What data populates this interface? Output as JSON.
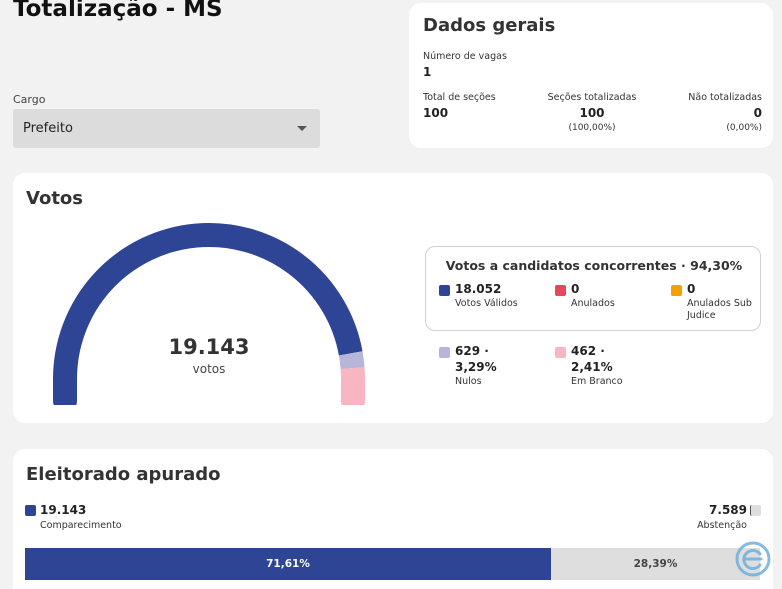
{
  "header": {
    "title": "Totalização - MS"
  },
  "filter": {
    "label": "Cargo",
    "selected": "Prefeito"
  },
  "dados_gerais": {
    "title": "Dados gerais",
    "vagas_label": "Número de vagas",
    "vagas_value": "1",
    "total_secoes_label": "Total de seções",
    "total_secoes_value": "100",
    "secoes_totalizadas_label": "Seções totalizadas",
    "secoes_totalizadas_value": "100",
    "secoes_totalizadas_pct": "(100,00%)",
    "nao_totalizadas_label": "Não totalizadas",
    "nao_totalizadas_value": "0",
    "nao_totalizadas_pct": "(0,00%)"
  },
  "votos": {
    "title": "Votos",
    "total": "19.143",
    "total_unit": "votos",
    "gauge_fractions": {
      "validos": 0.943,
      "nulos": 0.0329,
      "brancos": 0.0241
    },
    "legend_title": "Votos a candidatos concorrentes · 94,30%",
    "validos_value": "18.052",
    "validos_label": "Votos Válidos",
    "anulados_value": "0",
    "anulados_label": "Anulados",
    "sub_judice_value": "0",
    "sub_judice_label": "Anulados Sub Judice",
    "nulos_value": "629 ·",
    "nulos_pct": "3,29%",
    "nulos_label": "Nulos",
    "brancos_value": "462 ·",
    "brancos_pct": "2,41%",
    "brancos_label": "Em Branco"
  },
  "eleitorado": {
    "title": "Eleitorado apurado",
    "comparecimento_value": "19.143",
    "comparecimento_label": "Comparecimento",
    "abstencao_value": "7.589",
    "abstencao_label": "Abstenção",
    "comparecimento_pct": "71,61%",
    "abstencao_pct": "28,39%",
    "comparecimento_fraction": 0.7161
  },
  "colors": {
    "validos": "#2e4494",
    "anulados": "#e8475a",
    "sub_judice": "#f2a100",
    "nulos": "#b8b6d8",
    "brancos": "#f7b6c2",
    "abstencao": "#dedede"
  },
  "icons": {
    "select_caret": "caret-down-icon",
    "logo": "e-logo-icon"
  }
}
